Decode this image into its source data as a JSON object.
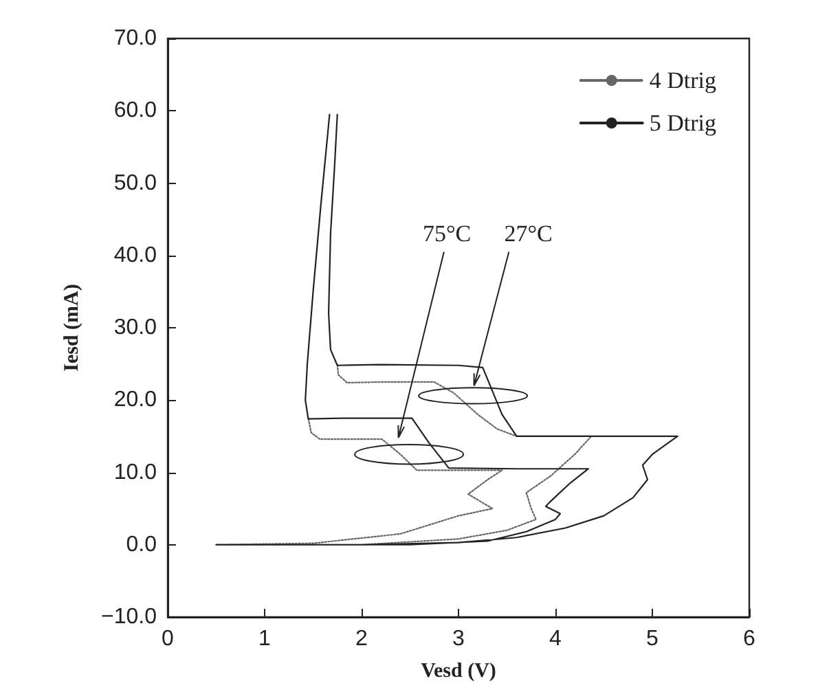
{
  "chart_data": {
    "type": "line",
    "xlabel": "Vesd (V)",
    "ylabel": "Iesd (mA)",
    "xlim": [
      0,
      6
    ],
    "xticks": [
      0,
      1,
      2,
      3,
      4,
      5,
      6
    ],
    "ylim": [
      -10,
      70
    ],
    "yticks": [
      {
        "value": -10,
        "label": "−10.0"
      },
      {
        "value": 0,
        "label": "0.0"
      },
      {
        "value": 10,
        "label": "10.0"
      },
      {
        "value": 20,
        "label": "20.0"
      },
      {
        "value": 30,
        "label": "30.0"
      },
      {
        "value": 40,
        "label": "40.0"
      },
      {
        "value": 50,
        "label": "50.0"
      },
      {
        "value": 60,
        "label": "60.0"
      },
      {
        "value": 70,
        "label": "70.0"
      }
    ],
    "grid": false,
    "legend": "top right",
    "marker": "none",
    "annotations": [
      "75°C",
      "27°C"
    ],
    "series": [
      {
        "name": "4 Dtrig",
        "color": "#666666",
        "line_style": "dotted",
        "x": [
          0.5,
          2.0,
          3.0,
          3.5,
          3.8,
          3.75,
          3.7,
          3.95,
          4.2,
          4.37,
          3.9,
          3.6,
          3.4,
          3.2,
          2.95,
          2.75,
          2.2,
          1.85,
          1.76,
          1.75,
          null,
          0.5,
          1.5,
          2.4,
          3.0,
          3.35,
          3.1,
          3.3,
          3.45,
          2.9,
          2.57,
          2.4,
          2.21,
          1.8,
          1.57,
          1.48,
          1.45
        ],
        "values": [
          0,
          0,
          0.8,
          2,
          3.5,
          5,
          7.2,
          9.5,
          12.5,
          15,
          15,
          15,
          16,
          18,
          21,
          22.5,
          22.5,
          22.4,
          23.5,
          25,
          null,
          0,
          0.2,
          1.5,
          4,
          5,
          7,
          9,
          10.3,
          10.3,
          10.3,
          12.5,
          14.6,
          14.6,
          14.6,
          15.5,
          17.5
        ]
      },
      {
        "name": "5 Dtrig",
        "color": "#222222",
        "line_style": "solid",
        "x": [
          0.5,
          2.0,
          3.0,
          3.6,
          4.1,
          4.5,
          4.8,
          4.95,
          4.9,
          5.0,
          5.26,
          4.6,
          3.6,
          3.45,
          3.25,
          3.0,
          2.2,
          1.75,
          1.68,
          1.66,
          1.68,
          1.72,
          1.75,
          null,
          0.5,
          2.5,
          3.3,
          3.7,
          4.0,
          4.05,
          3.9,
          3.95,
          4.15,
          4.34,
          3.6,
          2.9,
          2.7,
          2.52,
          1.8,
          1.45,
          1.42,
          1.44,
          1.5,
          1.58,
          1.67
        ],
        "values": [
          0,
          0,
          0.3,
          1,
          2.3,
          4,
          6.5,
          9,
          11,
          12.5,
          15,
          15,
          15,
          18,
          24.5,
          24.8,
          24.9,
          24.8,
          27,
          32,
          43,
          52,
          59.5,
          null,
          0,
          0,
          0.5,
          1.8,
          3.5,
          4.3,
          5.3,
          6,
          8.5,
          10.5,
          10.5,
          10.6,
          14,
          17.5,
          17.5,
          17.4,
          20,
          25,
          35,
          47,
          59.5
        ]
      }
    ]
  }
}
